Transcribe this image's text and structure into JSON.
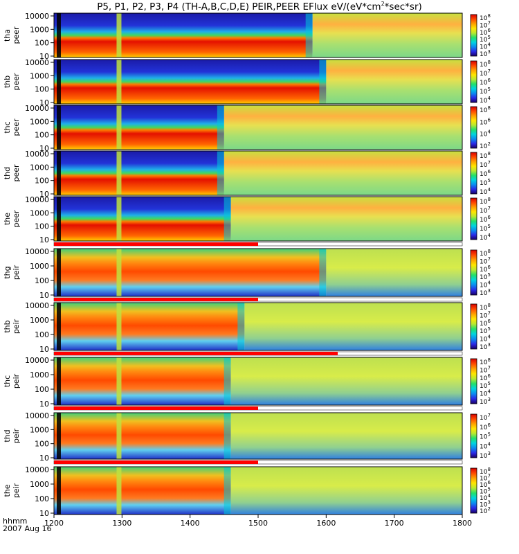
{
  "title": "P5, P1, P2, P3, P4 (TH-A,B,C,D,E) PEIR,PEER EFlux eV/(eV*cm²*sec*sr)",
  "title_parts": {
    "main": "P5, P1, P2, P3, P4 (TH-A,B,C,D,E) PEIR,PEER EFlux eV/(eV*cm",
    "sup": "2",
    "tail": "*sec*sr)"
  },
  "time_axis": {
    "unit_label": "hhmm",
    "date_label": "2007 Aug 16",
    "ticks": [
      "1200",
      "1300",
      "1400",
      "1500",
      "1600",
      "1700",
      "1800"
    ]
  },
  "colors": {
    "colorbar": [
      "#1a0066",
      "#2a2ae8",
      "#0b8cf0",
      "#00d4e0",
      "#23e06a",
      "#b8e830",
      "#ffe600",
      "#ffa000",
      "#ff4800",
      "#d80000"
    ]
  },
  "chart_data": {
    "type": "heatmap",
    "x_range": [
      "1200",
      "1800"
    ],
    "y_scale": "log",
    "y_range": [
      10,
      10000
    ],
    "y_ticks": [
      "10000",
      "1000",
      "100",
      "10"
    ],
    "panels": [
      {
        "label_1": "tha",
        "label_2": "peer",
        "cbar_ticks": [
          {
            "m": "8"
          },
          {
            "m": "7"
          },
          {
            "m": "6"
          },
          {
            "m": "5"
          },
          {
            "m": "4"
          },
          {
            "m": "3"
          }
        ]
      },
      {
        "label_1": "thb",
        "label_2": "peer",
        "cbar_ticks": [
          {
            "m": "8"
          },
          {
            "m": "7"
          },
          {
            "m": "6"
          },
          {
            "m": "5"
          },
          {
            "m": "4"
          }
        ]
      },
      {
        "label_1": "thc",
        "label_2": "peer",
        "cbar_ticks": [
          {
            "m": "8"
          },
          {
            "m": "6"
          },
          {
            "m": "4"
          },
          {
            "m": "2"
          }
        ]
      },
      {
        "label_1": "thd",
        "label_2": "peer",
        "cbar_ticks": [
          {
            "m": "8"
          },
          {
            "m": "7"
          },
          {
            "m": "6"
          },
          {
            "m": "5"
          },
          {
            "m": "4"
          }
        ]
      },
      {
        "label_1": "the",
        "label_2": "peer",
        "cbar_ticks": [
          {
            "m": "8"
          },
          {
            "m": "7"
          },
          {
            "m": "6"
          },
          {
            "m": "5"
          },
          {
            "m": "4"
          }
        ]
      },
      {
        "label_1": "thg",
        "label_2": "peir",
        "cbar_ticks": [
          {
            "m": "8"
          },
          {
            "m": "7"
          },
          {
            "m": "6"
          },
          {
            "m": "5"
          },
          {
            "m": "4"
          },
          {
            "m": "3"
          }
        ]
      },
      {
        "label_1": "thb",
        "label_2": "peir",
        "cbar_ticks": [
          {
            "m": "8"
          },
          {
            "m": "7"
          },
          {
            "m": "6"
          },
          {
            "m": "5"
          },
          {
            "m": "4"
          },
          {
            "m": "3"
          }
        ]
      },
      {
        "label_1": "thc",
        "label_2": "peir",
        "cbar_ticks": [
          {
            "m": "8"
          },
          {
            "m": "7"
          },
          {
            "m": "6"
          },
          {
            "m": "5"
          },
          {
            "m": "4"
          },
          {
            "m": "3"
          }
        ]
      },
      {
        "label_1": "thd",
        "label_2": "peir",
        "cbar_ticks": [
          {
            "m": "7"
          },
          {
            "m": "6"
          },
          {
            "m": "5"
          },
          {
            "m": "4"
          },
          {
            "m": "3"
          }
        ]
      },
      {
        "label_1": "the",
        "label_2": "peir",
        "cbar_ticks": [
          {
            "m": "8"
          },
          {
            "m": "7"
          },
          {
            "m": "6"
          },
          {
            "m": "5"
          },
          {
            "m": "4"
          },
          {
            "m": "3"
          },
          {
            "m": "2"
          }
        ]
      }
    ]
  }
}
